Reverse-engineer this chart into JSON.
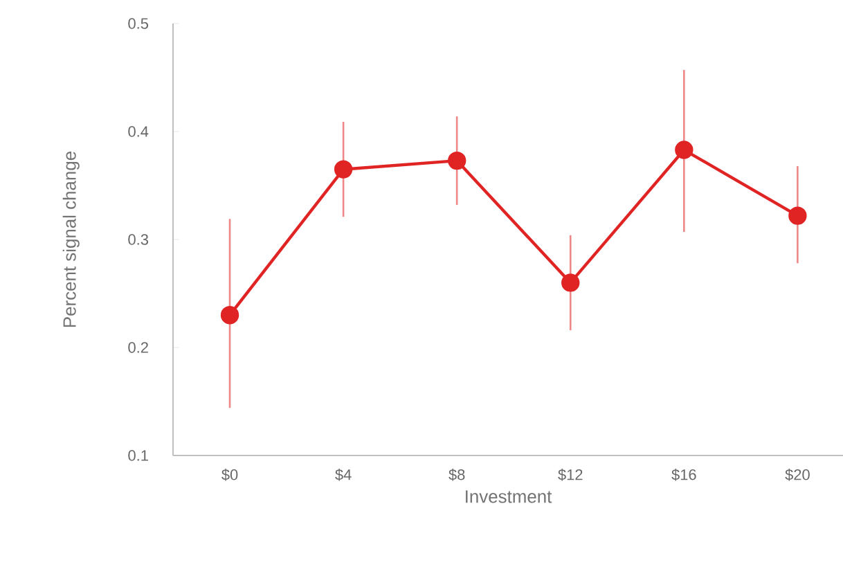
{
  "chart_data": {
    "type": "line",
    "xlabel": "Investment",
    "ylabel": "Percent signal change",
    "categories": [
      "$0",
      "$4",
      "$8",
      "$12",
      "$16",
      "$20"
    ],
    "series": [
      {
        "color": "#e02424",
        "values": [
          0.23,
          0.365,
          0.373,
          0.26,
          0.383,
          0.322
        ],
        "errors": [
          [
            0.144,
            0.319
          ],
          [
            0.321,
            0.409
          ],
          [
            0.332,
            0.414
          ],
          [
            0.216,
            0.304
          ],
          [
            0.307,
            0.457
          ],
          [
            0.278,
            0.368
          ]
        ]
      }
    ],
    "ylim": [
      0.1,
      0.5
    ],
    "yticks": [
      0.1,
      0.2,
      0.3,
      0.4,
      0.5
    ],
    "marker": "circle",
    "line_style": "solid"
  }
}
